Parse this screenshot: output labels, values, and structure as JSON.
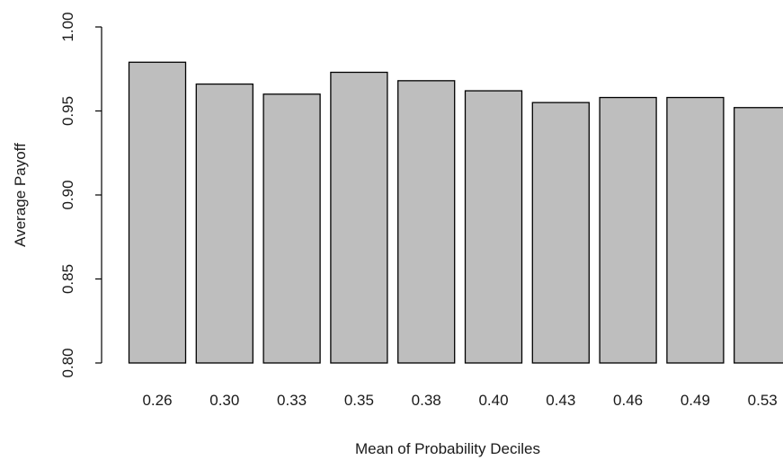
{
  "chart_data": {
    "type": "bar",
    "title": "",
    "xlabel": "Mean of Probability Deciles",
    "ylabel": "Average Payoff",
    "categories": [
      "0.26",
      "0.30",
      "0.33",
      "0.35",
      "0.38",
      "0.40",
      "0.43",
      "0.46",
      "0.49",
      "0.53"
    ],
    "values": [
      0.979,
      0.966,
      0.96,
      0.973,
      0.968,
      0.962,
      0.955,
      0.958,
      0.958,
      0.952
    ],
    "ylim": [
      0.8,
      1.0
    ],
    "yticks": [
      "0.80",
      "0.85",
      "0.90",
      "0.95",
      "1.00"
    ],
    "grid": false,
    "legend": "none",
    "colors": {
      "bar_fill": "#bebebe",
      "bar_stroke": "#000000",
      "axis": "#000000"
    }
  }
}
